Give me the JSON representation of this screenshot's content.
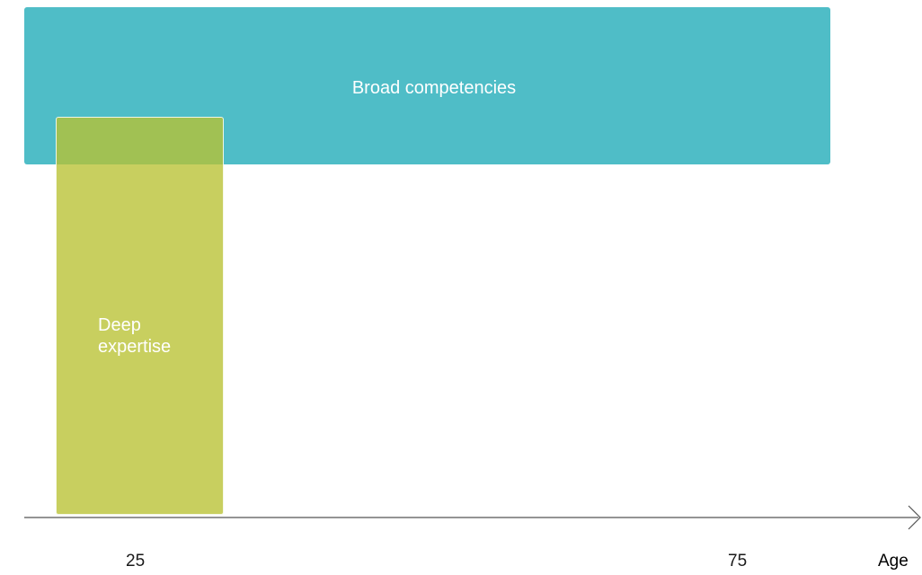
{
  "diagram": {
    "blocks": [
      {
        "id": "broad",
        "label": "Broad competencies",
        "color": "#4fbdc7"
      },
      {
        "id": "deep",
        "label_lines": [
          "Deep",
          "expertise"
        ],
        "color": "#b9c232"
      }
    ],
    "axis": {
      "label": "Age",
      "ticks": [
        "25",
        "75"
      ],
      "color": "#555555"
    }
  }
}
